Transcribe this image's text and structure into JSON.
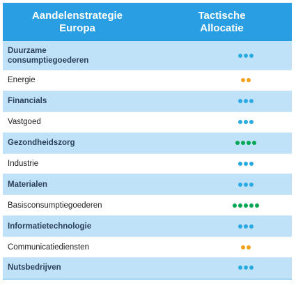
{
  "header": {
    "left_line1": "Aandelenstrategie",
    "left_line2": "Europa",
    "right_line1": "Tactische",
    "right_line2": "Allocatie"
  },
  "colors": {
    "blue": "#29abe2",
    "orange": "#f7a21b",
    "green": "#00a651"
  },
  "rows": [
    {
      "label_line1": "Duurzame",
      "label_line2": "consumptiegoederen",
      "dots": 3,
      "color": "blue",
      "shaded": true
    },
    {
      "label_line1": "Energie",
      "label_line2": "",
      "dots": 2,
      "color": "orange",
      "shaded": false
    },
    {
      "label_line1": "Financials",
      "label_line2": "",
      "dots": 3,
      "color": "blue",
      "shaded": true
    },
    {
      "label_line1": "Vastgoed",
      "label_line2": "",
      "dots": 3,
      "color": "blue",
      "shaded": false
    },
    {
      "label_line1": "Gezondheidszorg",
      "label_line2": "",
      "dots": 4,
      "color": "green",
      "shaded": true
    },
    {
      "label_line1": "Industrie",
      "label_line2": "",
      "dots": 3,
      "color": "blue",
      "shaded": false
    },
    {
      "label_line1": "Materialen",
      "label_line2": "",
      "dots": 3,
      "color": "blue",
      "shaded": true
    },
    {
      "label_line1": "Basisconsumptiegoederen",
      "label_line2": "",
      "dots": 5,
      "color": "green",
      "shaded": false
    },
    {
      "label_line1": "Informatietechnologie",
      "label_line2": "",
      "dots": 3,
      "color": "blue",
      "shaded": true
    },
    {
      "label_line1": "Communicatiediensten",
      "label_line2": "",
      "dots": 2,
      "color": "orange",
      "shaded": false
    },
    {
      "label_line1": "Nutsbedrijven",
      "label_line2": "",
      "dots": 3,
      "color": "blue",
      "shaded": true
    }
  ]
}
